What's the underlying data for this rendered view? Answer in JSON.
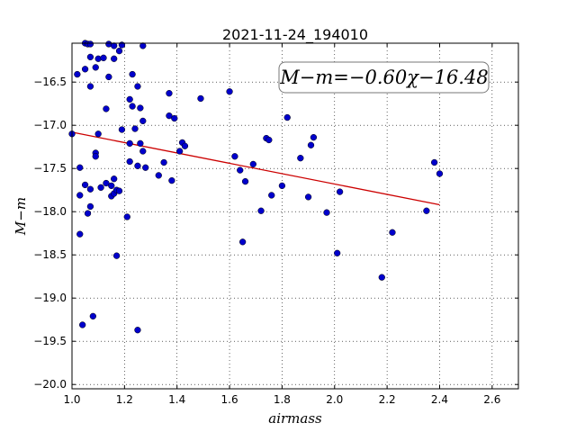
{
  "chart_data": {
    "type": "scatter",
    "title": "2021-11-24_194010",
    "xlabel": "airmass",
    "ylabel": "M−m",
    "xlim": [
      1.0,
      2.7
    ],
    "ylim": [
      -20.05,
      -16.05
    ],
    "x_ticks": [
      1.0,
      1.2,
      1.4,
      1.6,
      1.8,
      2.0,
      2.2,
      2.4,
      2.6
    ],
    "x_tick_labels": [
      "1.0",
      "1.2",
      "1.4",
      "1.6",
      "1.8",
      "2.0",
      "2.2",
      "2.4",
      "2.6"
    ],
    "y_ticks": [
      -16.5,
      -17.0,
      -17.5,
      -18.0,
      -18.5,
      -19.0,
      -19.5,
      -20.0
    ],
    "y_tick_labels": [
      "−16.5",
      "−17.0",
      "−17.5",
      "−18.0",
      "−18.5",
      "−19.0",
      "−19.5",
      "−20.0"
    ],
    "grid": true,
    "annotation": "M−m=−0.60χ−16.48",
    "fit": {
      "slope": -0.6,
      "intercept": -16.48,
      "x_range": [
        1.0,
        2.4
      ],
      "color": "#cc0000"
    },
    "point_color": "#0000cc",
    "points": [
      [
        1.0,
        -17.1
      ],
      [
        1.02,
        -16.41
      ],
      [
        1.03,
        -17.49
      ],
      [
        1.03,
        -17.81
      ],
      [
        1.03,
        -18.26
      ],
      [
        1.04,
        -19.31
      ],
      [
        1.05,
        -16.05
      ],
      [
        1.05,
        -16.35
      ],
      [
        1.05,
        -17.69
      ],
      [
        1.06,
        -18.02
      ],
      [
        1.06,
        -16.06
      ],
      [
        1.07,
        -16.55
      ],
      [
        1.07,
        -17.74
      ],
      [
        1.07,
        -17.94
      ],
      [
        1.07,
        -16.06
      ],
      [
        1.07,
        -16.21
      ],
      [
        1.08,
        -19.21
      ],
      [
        1.09,
        -16.33
      ],
      [
        1.09,
        -17.32
      ],
      [
        1.09,
        -17.36
      ],
      [
        1.1,
        -17.1
      ],
      [
        1.1,
        -16.23
      ],
      [
        1.11,
        -17.72
      ],
      [
        1.12,
        -16.22
      ],
      [
        1.13,
        -16.81
      ],
      [
        1.13,
        -17.67
      ],
      [
        1.14,
        -16.44
      ],
      [
        1.14,
        -16.06
      ],
      [
        1.15,
        -17.7
      ],
      [
        1.15,
        -17.82
      ],
      [
        1.16,
        -17.62
      ],
      [
        1.16,
        -16.23
      ],
      [
        1.16,
        -17.79
      ],
      [
        1.16,
        -16.08
      ],
      [
        1.17,
        -18.51
      ],
      [
        1.17,
        -17.75
      ],
      [
        1.18,
        -16.14
      ],
      [
        1.18,
        -17.76
      ],
      [
        1.19,
        -16.07
      ],
      [
        1.19,
        -17.05
      ],
      [
        1.21,
        -18.06
      ],
      [
        1.22,
        -16.7
      ],
      [
        1.22,
        -17.21
      ],
      [
        1.22,
        -17.42
      ],
      [
        1.23,
        -16.78
      ],
      [
        1.23,
        -16.41
      ],
      [
        1.24,
        -17.04
      ],
      [
        1.25,
        -19.37
      ],
      [
        1.25,
        -17.47
      ],
      [
        1.25,
        -16.55
      ],
      [
        1.26,
        -16.8
      ],
      [
        1.26,
        -17.21
      ],
      [
        1.27,
        -16.08
      ],
      [
        1.27,
        -17.3
      ],
      [
        1.27,
        -16.95
      ],
      [
        1.28,
        -17.49
      ],
      [
        1.33,
        -17.58
      ],
      [
        1.35,
        -17.43
      ],
      [
        1.37,
        -16.63
      ],
      [
        1.37,
        -16.89
      ],
      [
        1.38,
        -17.64
      ],
      [
        1.39,
        -16.92
      ],
      [
        1.41,
        -17.3
      ],
      [
        1.42,
        -17.2
      ],
      [
        1.43,
        -17.24
      ],
      [
        1.49,
        -16.69
      ],
      [
        1.6,
        -16.61
      ],
      [
        1.62,
        -17.36
      ],
      [
        1.64,
        -17.52
      ],
      [
        1.65,
        -18.35
      ],
      [
        1.66,
        -17.65
      ],
      [
        1.69,
        -17.45
      ],
      [
        1.72,
        -17.99
      ],
      [
        1.74,
        -17.15
      ],
      [
        1.75,
        -17.17
      ],
      [
        1.76,
        -17.81
      ],
      [
        1.8,
        -17.7
      ],
      [
        1.82,
        -16.91
      ],
      [
        1.87,
        -17.38
      ],
      [
        1.9,
        -17.83
      ],
      [
        1.91,
        -17.23
      ],
      [
        1.92,
        -17.14
      ],
      [
        1.97,
        -18.01
      ],
      [
        2.01,
        -18.48
      ],
      [
        2.02,
        -17.77
      ],
      [
        2.18,
        -18.76
      ],
      [
        2.22,
        -18.24
      ],
      [
        2.35,
        -17.99
      ],
      [
        2.38,
        -17.43
      ],
      [
        2.4,
        -17.56
      ]
    ]
  }
}
